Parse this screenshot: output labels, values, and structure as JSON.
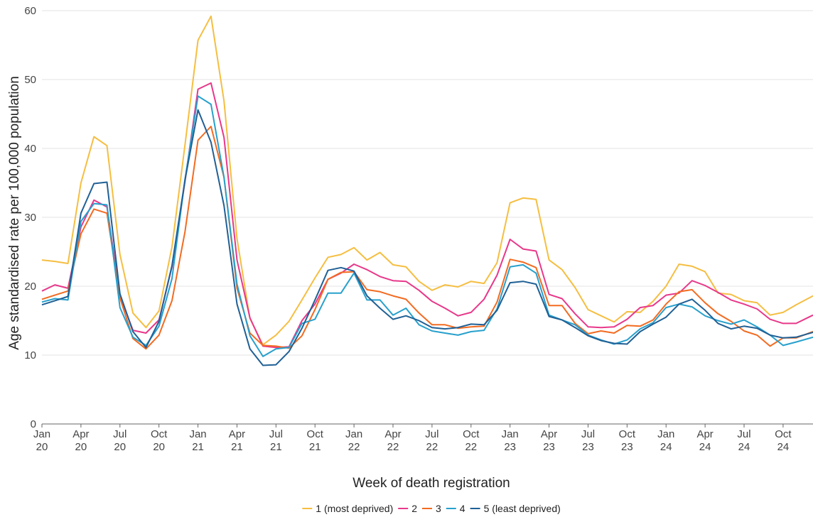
{
  "chart_data": {
    "type": "line",
    "xlabel": "Week of death registration",
    "ylabel": "Age standardised rate per 100,000 population",
    "ylim": [
      0,
      60
    ],
    "yticks": [
      0,
      10,
      20,
      30,
      40,
      50,
      60
    ],
    "xlim": [
      0,
      59.3
    ],
    "grid": "horizontal",
    "legend_position": "bottom",
    "x_ticks": [
      {
        "pos": 0,
        "month": "Jan",
        "year": "20"
      },
      {
        "pos": 3,
        "month": "Apr",
        "year": "20"
      },
      {
        "pos": 6,
        "month": "Jul",
        "year": "20"
      },
      {
        "pos": 9,
        "month": "Oct",
        "year": "20"
      },
      {
        "pos": 12,
        "month": "Jan",
        "year": "21"
      },
      {
        "pos": 15,
        "month": "Apr",
        "year": "21"
      },
      {
        "pos": 18,
        "month": "Jul",
        "year": "21"
      },
      {
        "pos": 21,
        "month": "Oct",
        "year": "21"
      },
      {
        "pos": 24,
        "month": "Jan",
        "year": "22"
      },
      {
        "pos": 27,
        "month": "Apr",
        "year": "22"
      },
      {
        "pos": 30,
        "month": "Jul",
        "year": "22"
      },
      {
        "pos": 33,
        "month": "Oct",
        "year": "22"
      },
      {
        "pos": 36,
        "month": "Jan",
        "year": "23"
      },
      {
        "pos": 39,
        "month": "Apr",
        "year": "23"
      },
      {
        "pos": 42,
        "month": "Jul",
        "year": "23"
      },
      {
        "pos": 45,
        "month": "Oct",
        "year": "23"
      },
      {
        "pos": 48,
        "month": "Jan",
        "year": "24"
      },
      {
        "pos": 51,
        "month": "Apr",
        "year": "24"
      },
      {
        "pos": 54,
        "month": "Jul",
        "year": "24"
      },
      {
        "pos": 57,
        "month": "Oct",
        "year": "24"
      }
    ],
    "series": [
      {
        "name": "1 (most deprived)",
        "color": "#f5be41",
        "points": [
          [
            0,
            23.8
          ],
          [
            1,
            23.6
          ],
          [
            2,
            23.3
          ],
          [
            3,
            35.0
          ],
          [
            4,
            41.7
          ],
          [
            5,
            40.4
          ],
          [
            6,
            24.6
          ],
          [
            7,
            16.1
          ],
          [
            8,
            14.0
          ],
          [
            9,
            16.4
          ],
          [
            10,
            25.7
          ],
          [
            11,
            40.5
          ],
          [
            12,
            55.7
          ],
          [
            13,
            59.2
          ],
          [
            14,
            46.9
          ],
          [
            15,
            26.9
          ],
          [
            16,
            15.3
          ],
          [
            17,
            11.5
          ],
          [
            18,
            12.9
          ],
          [
            19,
            14.9
          ],
          [
            20,
            18.0
          ],
          [
            21,
            21.2
          ],
          [
            22,
            24.2
          ],
          [
            23,
            24.6
          ],
          [
            24,
            25.6
          ],
          [
            25,
            23.8
          ],
          [
            26,
            24.9
          ],
          [
            27,
            23.1
          ],
          [
            28,
            22.8
          ],
          [
            29,
            20.7
          ],
          [
            30,
            19.4
          ],
          [
            31,
            20.2
          ],
          [
            32,
            19.9
          ],
          [
            33,
            20.7
          ],
          [
            34,
            20.4
          ],
          [
            35,
            23.4
          ],
          [
            36,
            32.1
          ],
          [
            37,
            32.8
          ],
          [
            38,
            32.6
          ],
          [
            39,
            23.8
          ],
          [
            40,
            22.4
          ],
          [
            41,
            19.8
          ],
          [
            42,
            16.6
          ],
          [
            43,
            15.7
          ],
          [
            44,
            14.8
          ],
          [
            45,
            16.3
          ],
          [
            46,
            16.2
          ],
          [
            47,
            17.8
          ],
          [
            48,
            20.0
          ],
          [
            49,
            23.2
          ],
          [
            50,
            22.9
          ],
          [
            51,
            22.1
          ],
          [
            52,
            19.0
          ],
          [
            53,
            18.8
          ],
          [
            54,
            17.9
          ],
          [
            55,
            17.6
          ],
          [
            56,
            15.8
          ],
          [
            57,
            16.2
          ],
          [
            58,
            17.3
          ],
          [
            59.3,
            18.6
          ]
        ]
      },
      {
        "name": "2",
        "color": "#e8388a",
        "points": [
          [
            0,
            19.3
          ],
          [
            1,
            20.2
          ],
          [
            2,
            19.7
          ],
          [
            3,
            28.6
          ],
          [
            4,
            32.5
          ],
          [
            5,
            31.5
          ],
          [
            6,
            18.6
          ],
          [
            7,
            13.6
          ],
          [
            8,
            13.2
          ],
          [
            9,
            15.1
          ],
          [
            10,
            22.8
          ],
          [
            11,
            35.2
          ],
          [
            12,
            48.6
          ],
          [
            13,
            49.5
          ],
          [
            14,
            41.6
          ],
          [
            15,
            23.8
          ],
          [
            16,
            15.4
          ],
          [
            17,
            11.3
          ],
          [
            18,
            11.1
          ],
          [
            19,
            11.2
          ],
          [
            20,
            15.0
          ],
          [
            21,
            17.4
          ],
          [
            22,
            21.0
          ],
          [
            23,
            21.9
          ],
          [
            24,
            23.2
          ],
          [
            25,
            22.4
          ],
          [
            26,
            21.4
          ],
          [
            27,
            20.8
          ],
          [
            28,
            20.7
          ],
          [
            29,
            19.4
          ],
          [
            30,
            17.8
          ],
          [
            31,
            16.8
          ],
          [
            32,
            15.7
          ],
          [
            33,
            16.2
          ],
          [
            34,
            18.1
          ],
          [
            35,
            21.6
          ],
          [
            36,
            26.8
          ],
          [
            37,
            25.4
          ],
          [
            38,
            25.1
          ],
          [
            39,
            18.8
          ],
          [
            40,
            18.2
          ],
          [
            41,
            16.0
          ],
          [
            42,
            14.1
          ],
          [
            43,
            14.0
          ],
          [
            44,
            14.1
          ],
          [
            45,
            15.2
          ],
          [
            46,
            16.9
          ],
          [
            47,
            17.2
          ],
          [
            48,
            18.7
          ],
          [
            49,
            19.0
          ],
          [
            50,
            20.8
          ],
          [
            51,
            20.1
          ],
          [
            52,
            19.1
          ],
          [
            53,
            18.0
          ],
          [
            54,
            17.4
          ],
          [
            55,
            16.7
          ],
          [
            56,
            15.2
          ],
          [
            57,
            14.6
          ],
          [
            58,
            14.6
          ],
          [
            59.3,
            15.8
          ]
        ]
      },
      {
        "name": "3",
        "color": "#f26b21",
        "points": [
          [
            0,
            18.1
          ],
          [
            1,
            18.7
          ],
          [
            2,
            19.3
          ],
          [
            3,
            27.6
          ],
          [
            4,
            31.2
          ],
          [
            5,
            30.6
          ],
          [
            6,
            18.3
          ],
          [
            7,
            12.4
          ],
          [
            8,
            10.9
          ],
          [
            9,
            12.9
          ],
          [
            10,
            17.9
          ],
          [
            11,
            27.9
          ],
          [
            12,
            41.2
          ],
          [
            13,
            43.2
          ],
          [
            14,
            35.8
          ],
          [
            15,
            19.7
          ],
          [
            16,
            13.2
          ],
          [
            17,
            11.4
          ],
          [
            18,
            11.3
          ],
          [
            19,
            11.0
          ],
          [
            20,
            12.8
          ],
          [
            21,
            16.6
          ],
          [
            22,
            21.0
          ],
          [
            23,
            22.0
          ],
          [
            24,
            22.1
          ],
          [
            25,
            19.5
          ],
          [
            26,
            19.2
          ],
          [
            27,
            18.6
          ],
          [
            28,
            18.1
          ],
          [
            29,
            16.1
          ],
          [
            30,
            14.4
          ],
          [
            31,
            14.4
          ],
          [
            32,
            13.9
          ],
          [
            33,
            14.1
          ],
          [
            34,
            14.2
          ],
          [
            35,
            17.7
          ],
          [
            36,
            23.9
          ],
          [
            37,
            23.5
          ],
          [
            38,
            22.7
          ],
          [
            39,
            17.2
          ],
          [
            40,
            17.2
          ],
          [
            41,
            14.6
          ],
          [
            42,
            13.1
          ],
          [
            43,
            13.5
          ],
          [
            44,
            13.2
          ],
          [
            45,
            14.3
          ],
          [
            46,
            14.2
          ],
          [
            47,
            15.1
          ],
          [
            48,
            17.4
          ],
          [
            49,
            19.2
          ],
          [
            50,
            19.5
          ],
          [
            51,
            17.6
          ],
          [
            52,
            16.0
          ],
          [
            53,
            14.9
          ],
          [
            54,
            13.5
          ],
          [
            55,
            12.9
          ],
          [
            56,
            11.3
          ],
          [
            57,
            12.5
          ],
          [
            58,
            12.5
          ],
          [
            59.3,
            13.4
          ]
        ]
      },
      {
        "name": "4",
        "color": "#27a0cc",
        "points": [
          [
            0,
            17.7
          ],
          [
            1,
            18.2
          ],
          [
            2,
            18.0
          ],
          [
            3,
            29.4
          ],
          [
            4,
            32.0
          ],
          [
            5,
            31.8
          ],
          [
            6,
            16.9
          ],
          [
            7,
            12.6
          ],
          [
            8,
            11.4
          ],
          [
            9,
            14.2
          ],
          [
            10,
            21.1
          ],
          [
            11,
            35.5
          ],
          [
            12,
            47.6
          ],
          [
            13,
            46.4
          ],
          [
            14,
            35.8
          ],
          [
            15,
            20.3
          ],
          [
            16,
            12.8
          ],
          [
            17,
            9.8
          ],
          [
            18,
            10.9
          ],
          [
            19,
            11.1
          ],
          [
            20,
            14.6
          ],
          [
            21,
            15.2
          ],
          [
            22,
            19.0
          ],
          [
            23,
            19.0
          ],
          [
            24,
            21.9
          ],
          [
            25,
            18.0
          ],
          [
            26,
            18.0
          ],
          [
            27,
            15.8
          ],
          [
            28,
            16.8
          ],
          [
            29,
            14.4
          ],
          [
            30,
            13.5
          ],
          [
            31,
            13.2
          ],
          [
            32,
            12.9
          ],
          [
            33,
            13.4
          ],
          [
            34,
            13.6
          ],
          [
            35,
            16.7
          ],
          [
            36,
            22.8
          ],
          [
            37,
            23.1
          ],
          [
            38,
            21.9
          ],
          [
            39,
            15.8
          ],
          [
            40,
            15.1
          ],
          [
            41,
            14.4
          ],
          [
            42,
            12.9
          ],
          [
            43,
            12.2
          ],
          [
            44,
            11.6
          ],
          [
            45,
            12.2
          ],
          [
            46,
            13.8
          ],
          [
            47,
            14.7
          ],
          [
            48,
            16.9
          ],
          [
            49,
            17.4
          ],
          [
            50,
            17.0
          ],
          [
            51,
            15.7
          ],
          [
            52,
            15.0
          ],
          [
            53,
            14.5
          ],
          [
            54,
            15.1
          ],
          [
            55,
            14.1
          ],
          [
            56,
            12.9
          ],
          [
            57,
            11.4
          ],
          [
            58,
            11.9
          ],
          [
            59.3,
            12.6
          ]
        ]
      },
      {
        "name": "5 (least deprived)",
        "color": "#206095",
        "points": [
          [
            0,
            17.3
          ],
          [
            1,
            17.9
          ],
          [
            2,
            18.5
          ],
          [
            3,
            30.6
          ],
          [
            4,
            34.9
          ],
          [
            5,
            35.1
          ],
          [
            6,
            18.9
          ],
          [
            7,
            13.4
          ],
          [
            8,
            11.1
          ],
          [
            9,
            14.9
          ],
          [
            10,
            23.0
          ],
          [
            11,
            35.4
          ],
          [
            12,
            45.6
          ],
          [
            13,
            40.9
          ],
          [
            14,
            31.7
          ],
          [
            15,
            17.4
          ],
          [
            16,
            10.9
          ],
          [
            17,
            8.5
          ],
          [
            18,
            8.6
          ],
          [
            19,
            10.5
          ],
          [
            20,
            13.9
          ],
          [
            21,
            18.0
          ],
          [
            22,
            22.3
          ],
          [
            23,
            22.7
          ],
          [
            24,
            22.2
          ],
          [
            25,
            18.6
          ],
          [
            26,
            16.8
          ],
          [
            27,
            15.2
          ],
          [
            28,
            15.7
          ],
          [
            29,
            15.0
          ],
          [
            30,
            14.0
          ],
          [
            31,
            13.8
          ],
          [
            32,
            14.0
          ],
          [
            33,
            14.5
          ],
          [
            34,
            14.4
          ],
          [
            35,
            16.5
          ],
          [
            36,
            20.5
          ],
          [
            37,
            20.7
          ],
          [
            38,
            20.3
          ],
          [
            39,
            15.6
          ],
          [
            40,
            15.1
          ],
          [
            41,
            14.0
          ],
          [
            42,
            12.8
          ],
          [
            43,
            12.1
          ],
          [
            44,
            11.7
          ],
          [
            45,
            11.6
          ],
          [
            46,
            13.4
          ],
          [
            47,
            14.5
          ],
          [
            48,
            15.5
          ],
          [
            49,
            17.4
          ],
          [
            50,
            18.1
          ],
          [
            51,
            16.5
          ],
          [
            52,
            14.6
          ],
          [
            53,
            13.8
          ],
          [
            54,
            14.2
          ],
          [
            55,
            13.9
          ],
          [
            56,
            12.9
          ],
          [
            57,
            12.5
          ],
          [
            58,
            12.6
          ],
          [
            59.3,
            13.3
          ]
        ]
      }
    ]
  }
}
